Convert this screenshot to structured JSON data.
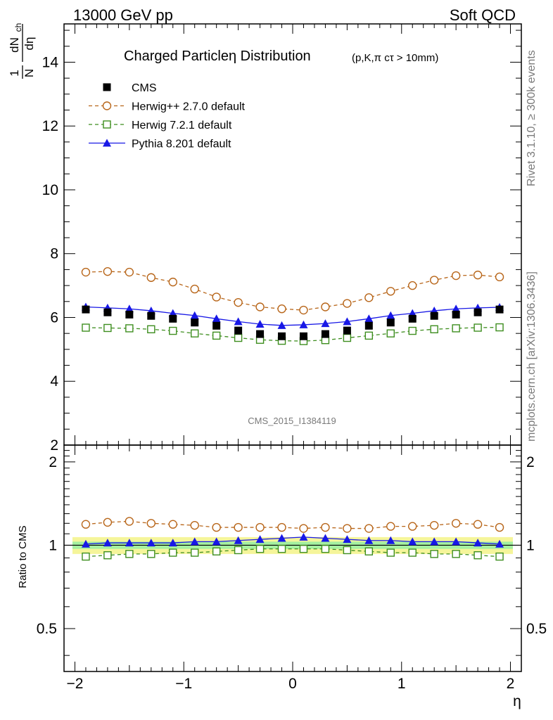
{
  "header": {
    "left": "13000 GeV pp",
    "right": "Soft QCD"
  },
  "side_labels": {
    "rivet": "Rivet 3.1.10, ≥ 300k events",
    "mcplots": "mcplots.cern.ch [arXiv:1306.3436]"
  },
  "watermark": "CMS_2015_I1384119",
  "chart_data": {
    "type": "line",
    "title": "Charged Particleη Distribution",
    "subtitle": "(p,K,π cτ > 10mm)",
    "xlabel": "η",
    "ylabel_main": {
      "frac_num": "1",
      "frac_den": "N",
      "d_num": "dN",
      "sub": "ch",
      "d_den": "dη"
    },
    "ylabel_ratio": "Ratio to CMS",
    "xlim": [
      -2.1,
      2.1
    ],
    "ylim_main": [
      2,
      15.2
    ],
    "ylim_ratio": [
      0.35,
      2.3
    ],
    "x_ticks": [
      {
        "v": -2,
        "label": "−2"
      },
      {
        "v": -1,
        "label": "−1"
      },
      {
        "v": 0,
        "label": "0"
      },
      {
        "v": 1,
        "label": "1"
      },
      {
        "v": 2,
        "label": "2"
      }
    ],
    "y_ticks_main": [
      {
        "v": 2,
        "label": "2"
      },
      {
        "v": 4,
        "label": "4"
      },
      {
        "v": 6,
        "label": "6"
      },
      {
        "v": 8,
        "label": "8"
      },
      {
        "v": 10,
        "label": "10"
      },
      {
        "v": 12,
        "label": "12"
      },
      {
        "v": 14,
        "label": "14"
      }
    ],
    "y_ticks_ratio_left": [
      {
        "v": 0.5,
        "label": "0.5"
      },
      {
        "v": 1,
        "label": "1"
      },
      {
        "v": 2,
        "label": "2"
      }
    ],
    "y_ticks_ratio_right": [
      {
        "v": 0.5,
        "label": "0.5"
      },
      {
        "v": 1,
        "label": "1"
      },
      {
        "v": 2,
        "label": "2"
      }
    ],
    "x": [
      -1.9,
      -1.7,
      -1.5,
      -1.3,
      -1.1,
      -0.9,
      -0.7,
      -0.5,
      -0.3,
      -0.1,
      0.1,
      0.3,
      0.5,
      0.7,
      0.9,
      1.1,
      1.3,
      1.5,
      1.7,
      1.9
    ],
    "band_inner": 0.03,
    "band_outer": 0.07,
    "legend_position": "top-left",
    "series": [
      {
        "name": "CMS",
        "marker": "filled-square",
        "color": "#000000",
        "line": "none",
        "values": [
          6.25,
          6.16,
          6.09,
          6.05,
          5.96,
          5.84,
          5.74,
          5.59,
          5.48,
          5.41,
          5.41,
          5.48,
          5.59,
          5.74,
          5.84,
          5.96,
          6.05,
          6.09,
          6.16,
          6.25
        ],
        "ratio": [
          1,
          1,
          1,
          1,
          1,
          1,
          1,
          1,
          1,
          1,
          1,
          1,
          1,
          1,
          1,
          1,
          1,
          1,
          1,
          1
        ]
      },
      {
        "name": "Herwig++ 2.7.0 default",
        "marker": "open-circle",
        "color": "#b8661a",
        "line": "dashed",
        "values": [
          7.42,
          7.44,
          7.42,
          7.25,
          7.11,
          6.89,
          6.64,
          6.47,
          6.33,
          6.27,
          6.23,
          6.33,
          6.44,
          6.62,
          6.82,
          7.0,
          7.17,
          7.31,
          7.33,
          7.27
        ],
        "ratio": [
          1.19,
          1.21,
          1.22,
          1.2,
          1.19,
          1.18,
          1.16,
          1.16,
          1.16,
          1.16,
          1.15,
          1.16,
          1.15,
          1.15,
          1.17,
          1.17,
          1.18,
          1.2,
          1.19,
          1.16
        ]
      },
      {
        "name": "Herwig 7.2.1 default",
        "marker": "open-square",
        "color": "#3e8e1f",
        "line": "dashed",
        "values": [
          5.68,
          5.67,
          5.66,
          5.63,
          5.58,
          5.5,
          5.43,
          5.36,
          5.3,
          5.27,
          5.26,
          5.29,
          5.36,
          5.43,
          5.5,
          5.58,
          5.63,
          5.66,
          5.68,
          5.69
        ],
        "ratio": [
          0.91,
          0.92,
          0.93,
          0.93,
          0.94,
          0.94,
          0.95,
          0.96,
          0.97,
          0.97,
          0.97,
          0.97,
          0.96,
          0.95,
          0.94,
          0.94,
          0.93,
          0.93,
          0.92,
          0.91
        ]
      },
      {
        "name": "Pythia 8.201 default",
        "marker": "filled-triangle",
        "color": "#1818e6",
        "line": "solid",
        "values": [
          6.33,
          6.3,
          6.27,
          6.21,
          6.13,
          6.06,
          5.96,
          5.87,
          5.79,
          5.75,
          5.77,
          5.81,
          5.87,
          5.96,
          6.06,
          6.13,
          6.21,
          6.27,
          6.3,
          6.32
        ],
        "ratio": [
          1.01,
          1.02,
          1.02,
          1.02,
          1.02,
          1.03,
          1.03,
          1.04,
          1.05,
          1.06,
          1.07,
          1.06,
          1.05,
          1.04,
          1.04,
          1.03,
          1.03,
          1.03,
          1.02,
          1.01
        ]
      }
    ]
  }
}
